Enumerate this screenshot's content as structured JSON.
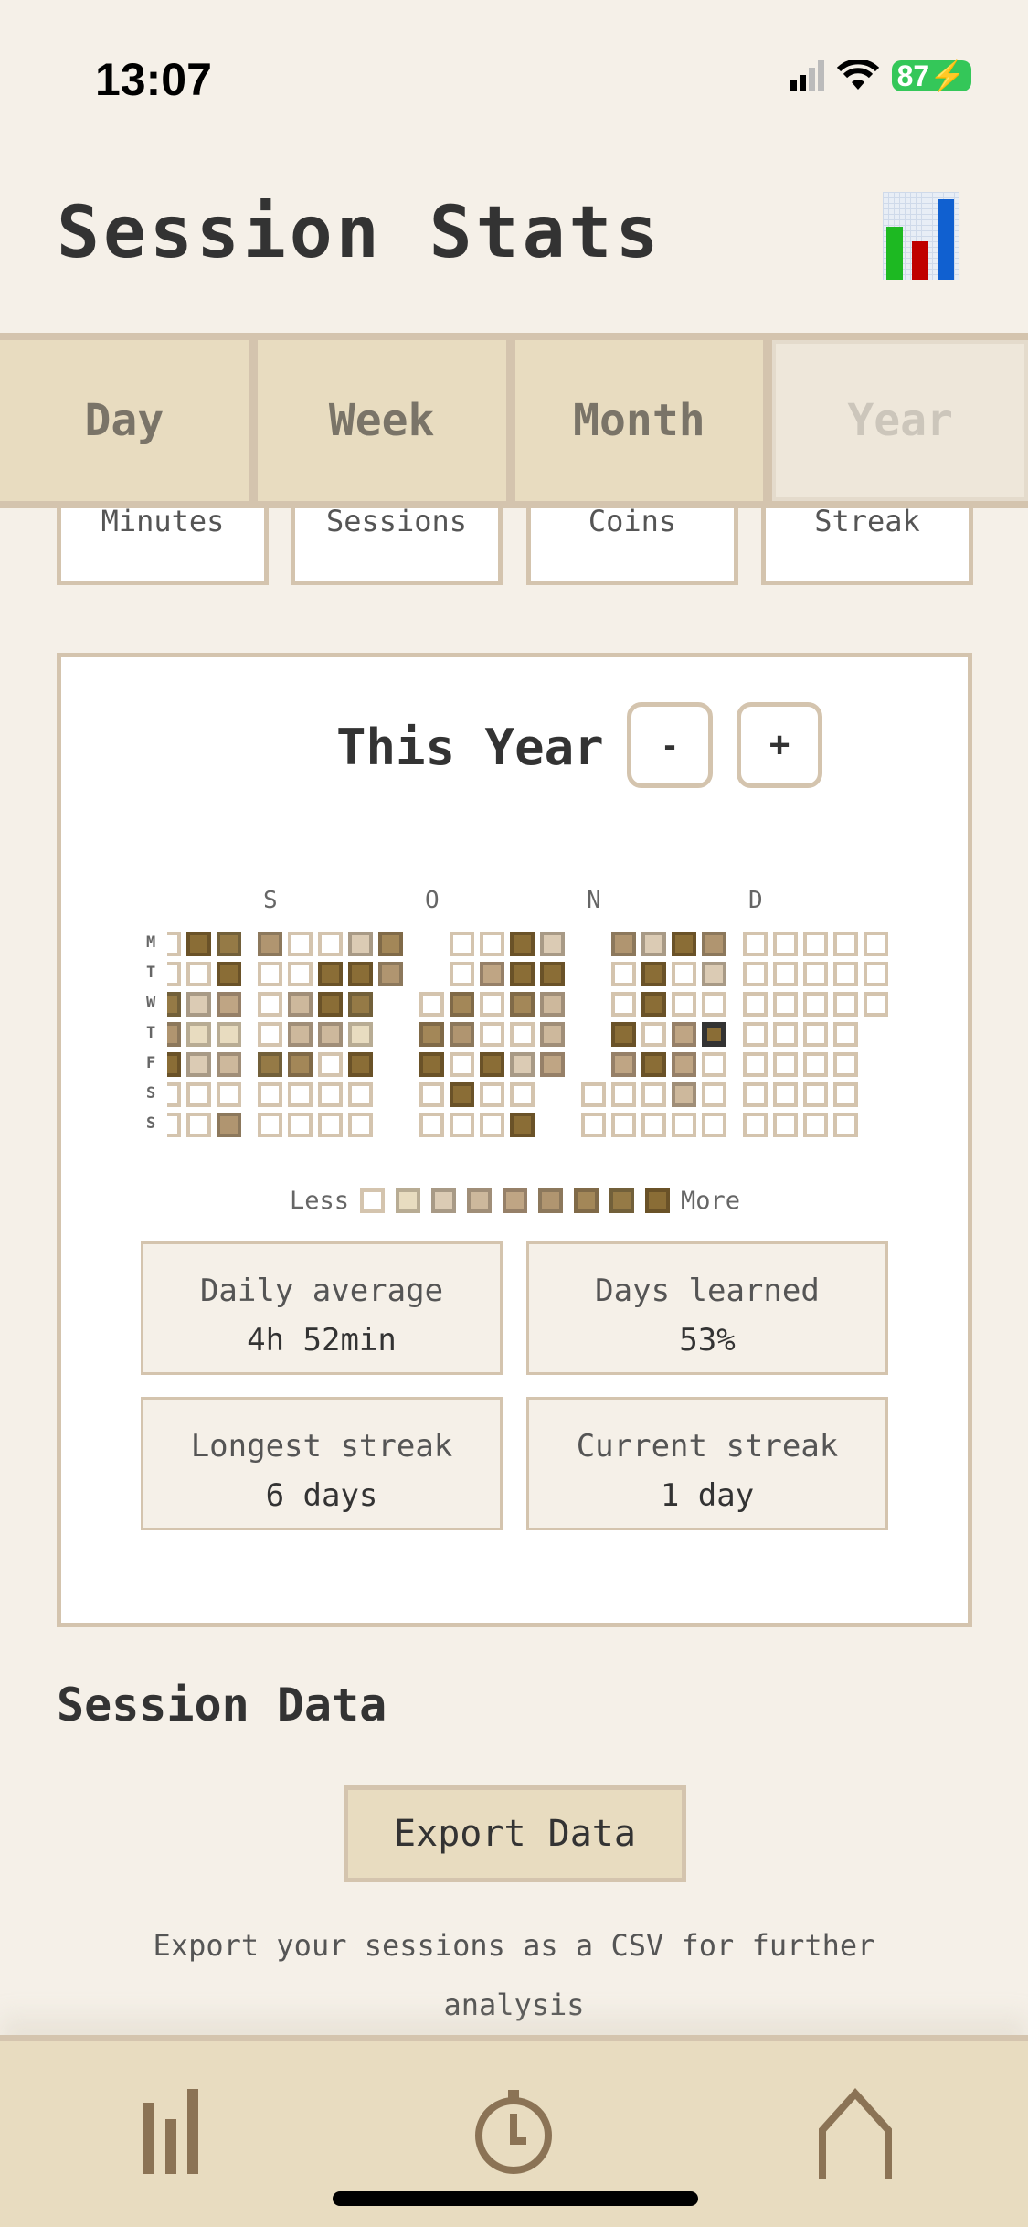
{
  "status_bar": {
    "time": "13:07",
    "battery": "87",
    "icons": [
      "signal-icon",
      "wifi-icon",
      "battery-charging-icon"
    ]
  },
  "header": {
    "title": "Session Stats",
    "icon": "bar-chart-icon"
  },
  "tabs": [
    {
      "label": "Day",
      "active": false
    },
    {
      "label": "Week",
      "active": false
    },
    {
      "label": "Month",
      "active": false
    },
    {
      "label": "Year",
      "active": true
    }
  ],
  "summary_cards": [
    "Minutes",
    "Sessions",
    "Coins",
    "Streak"
  ],
  "heatmap": {
    "period_label": "This Year",
    "prev_label": "-",
    "next_label": "+",
    "day_labels": [
      "M",
      "T",
      "W",
      "T",
      "F",
      "S",
      "S"
    ],
    "legend_less": "Less",
    "legend_more": "More",
    "colors": {
      "fills": [
        "#FFFFFF",
        "#E8DCC0",
        "#DBCBB4",
        "#CDB89C",
        "#BFA584",
        "#B09570",
        "#A38758",
        "#957A46",
        "#8A6D36"
      ],
      "borders": [
        "#D4C4AE",
        "#B8AC94",
        "#A89A86",
        "#A08E78",
        "#968068",
        "#8C785C",
        "#806A48",
        "#72603A",
        "#6A5228"
      ],
      "today_border": "#333333"
    },
    "today": {
      "month": 3,
      "week": 4,
      "day": 3
    },
    "months": [
      {
        "label": "",
        "weeks": [
          [
            0,
            0,
            7,
            5,
            8,
            0,
            0
          ],
          [
            8,
            0,
            2,
            1,
            2,
            0,
            0
          ],
          [
            7,
            8,
            4,
            1,
            3,
            0,
            5
          ]
        ]
      },
      {
        "label": "S",
        "weeks": [
          [
            5,
            0,
            0,
            0,
            7,
            0,
            0
          ],
          [
            0,
            0,
            3,
            3,
            6,
            0,
            0
          ],
          [
            0,
            8,
            8,
            3,
            0,
            0,
            0
          ],
          [
            2,
            8,
            7,
            1,
            8,
            0,
            0
          ],
          [
            6,
            5,
            null,
            null,
            null,
            null,
            null
          ]
        ]
      },
      {
        "label": "O",
        "weeks": [
          [
            null,
            null,
            0,
            6,
            8,
            0,
            0
          ],
          [
            0,
            0,
            6,
            5,
            0,
            8,
            0
          ],
          [
            0,
            4,
            0,
            0,
            8,
            0,
            0
          ],
          [
            8,
            8,
            6,
            0,
            2,
            0,
            8
          ],
          [
            2,
            8,
            3,
            3,
            4,
            null,
            null
          ]
        ]
      },
      {
        "label": "N",
        "weeks": [
          [
            null,
            null,
            null,
            null,
            null,
            0,
            0
          ],
          [
            5,
            0,
            0,
            8,
            4,
            0,
            0
          ],
          [
            2,
            8,
            8,
            0,
            8,
            0,
            0
          ],
          [
            8,
            0,
            0,
            4,
            4,
            3,
            0
          ],
          [
            5,
            2,
            0,
            8,
            0,
            0,
            0
          ]
        ]
      },
      {
        "label": "D",
        "weeks": [
          [
            0,
            0,
            0,
            0,
            0,
            0,
            0
          ],
          [
            0,
            0,
            0,
            0,
            0,
            0,
            0
          ],
          [
            0,
            0,
            0,
            0,
            0,
            0,
            0
          ],
          [
            0,
            0,
            0,
            0,
            0,
            0,
            0
          ],
          [
            0,
            0,
            0,
            null,
            null,
            null,
            null
          ]
        ]
      }
    ]
  },
  "stats": [
    {
      "label": "Daily average",
      "value": "4h 52min"
    },
    {
      "label": "Days learned",
      "value": "53%"
    },
    {
      "label": "Longest streak",
      "value": "6 days"
    },
    {
      "label": "Current streak",
      "value": "1 day"
    }
  ],
  "session_data": {
    "title": "Session Data",
    "export_label": "Export Data",
    "description": "Export your sessions as a CSV for further analysis"
  },
  "bottom_nav": [
    {
      "name": "stats",
      "icon": "bar-chart-icon"
    },
    {
      "name": "timer",
      "icon": "stopwatch-icon"
    },
    {
      "name": "home",
      "icon": "home-icon"
    }
  ],
  "nav_color": "#8B7355"
}
